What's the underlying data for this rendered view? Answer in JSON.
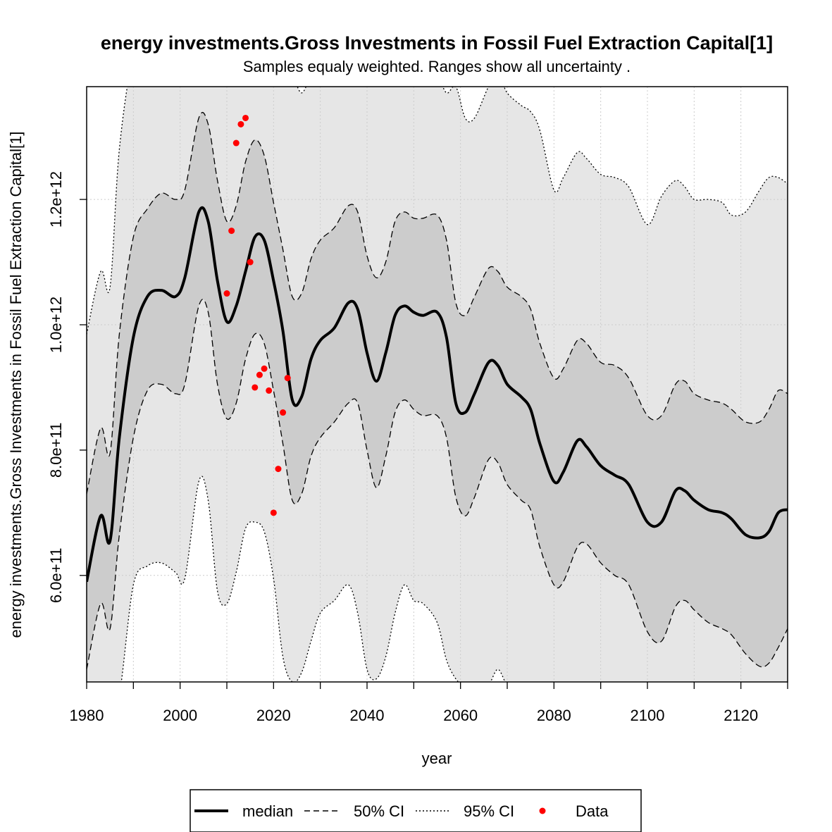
{
  "chart_data": {
    "type": "line",
    "title": "energy investments.Gross Investments in Fossil Fuel Extraction Capital[1]",
    "subtitle": "Samples equaly weighted. Ranges show  all uncertainty .",
    "xlabel": "year",
    "ylabel": "energy investments.Gross Investments in Fossil Fuel Extraction Capital[1]",
    "xlim": [
      1980,
      2130
    ],
    "ylim": [
      430000000000,
      1380000000000
    ],
    "x_ticks": [
      1980,
      2000,
      2020,
      2040,
      2060,
      2080,
      2100,
      2120
    ],
    "x_tick_labels": [
      "1980",
      "2000",
      "2020",
      "2040",
      "2060",
      "2080",
      "2100",
      "2120"
    ],
    "y_ticks": [
      600000000000,
      800000000000,
      1000000000000,
      1200000000000
    ],
    "y_tick_labels": [
      "6.0e+11",
      "8.0e+11",
      "1.0e+12",
      "1.2e+12"
    ],
    "grid": true,
    "legend_position": "bottom",
    "legend": [
      "median",
      "50% CI",
      "95% CI",
      "Data"
    ],
    "colors": {
      "band95": "#e6e6e6",
      "band50": "#cccccc",
      "median": "#000000",
      "data": "#ff0000",
      "grid": "#cccccc"
    },
    "x": [
      1980,
      1983,
      1985,
      1987,
      1990,
      1993,
      1996,
      1999,
      2001,
      2004,
      2006,
      2008,
      2010,
      2012,
      2014,
      2016,
      2018,
      2020,
      2022,
      2024,
      2026,
      2028,
      2030,
      2033,
      2036,
      2038,
      2040,
      2042,
      2044,
      2046,
      2048,
      2050,
      2052,
      2055,
      2057,
      2059,
      2061,
      2063,
      2066,
      2068,
      2070,
      2073,
      2075,
      2077,
      2080,
      2082,
      2085,
      2087,
      2090,
      2093,
      2096,
      2100,
      2103,
      2106,
      2108,
      2110,
      2113,
      2116,
      2118,
      2121,
      2124,
      2126,
      2128,
      2130
    ],
    "series": [
      {
        "name": "median",
        "values": [
          590000000000.0,
          695000000000.0,
          655000000000.0,
          820000000000.0,
          980000000000.0,
          1045000000000.0,
          1055000000000.0,
          1045000000000.0,
          1075000000000.0,
          1180000000000.0,
          1165000000000.0,
          1070000000000.0,
          1005000000000.0,
          1030000000000.0,
          1085000000000.0,
          1140000000000.0,
          1135000000000.0,
          1070000000000.0,
          990000000000.0,
          880000000000.0,
          885000000000.0,
          945000000000.0,
          975000000000.0,
          995000000000.0,
          1035000000000.0,
          1025000000000.0,
          955000000000.0,
          910000000000.0,
          955000000000.0,
          1015000000000.0,
          1030000000000.0,
          1020000000000.0,
          1015000000000.0,
          1020000000000.0,
          980000000000.0,
          875000000000.0,
          860000000000.0,
          890000000000.0,
          940000000000.0,
          935000000000.0,
          905000000000.0,
          885000000000.0,
          865000000000.0,
          810000000000.0,
          750000000000.0,
          765000000000.0,
          815000000000.0,
          805000000000.0,
          775000000000.0,
          760000000000.0,
          745000000000.0,
          685000000000.0,
          685000000000.0,
          735000000000.0,
          735000000000.0,
          720000000000.0,
          705000000000.0,
          700000000000.0,
          690000000000.0,
          665000000000.0,
          660000000000.0,
          670000000000.0,
          700000000000.0,
          705000000000.0
        ]
      },
      {
        "name": "50% CI upper",
        "values": [
          730000000000.0,
          835000000000.0,
          795000000000.0,
          985000000000.0,
          1140000000000.0,
          1185000000000.0,
          1210000000000.0,
          1200000000000.0,
          1215000000000.0,
          1330000000000.0,
          1320000000000.0,
          1230000000000.0,
          1165000000000.0,
          1190000000000.0,
          1260000000000.0,
          1295000000000.0,
          1270000000000.0,
          1195000000000.0,
          1120000000000.0,
          1045000000000.0,
          1050000000000.0,
          1105000000000.0,
          1135000000000.0,
          1155000000000.0,
          1190000000000.0,
          1180000000000.0,
          1110000000000.0,
          1075000000000.0,
          1100000000000.0,
          1165000000000.0,
          1180000000000.0,
          1170000000000.0,
          1170000000000.0,
          1175000000000.0,
          1135000000000.0,
          1035000000000.0,
          1015000000000.0,
          1045000000000.0,
          1090000000000.0,
          1085000000000.0,
          1060000000000.0,
          1045000000000.0,
          1025000000000.0,
          970000000000.0,
          915000000000.0,
          930000000000.0,
          975000000000.0,
          970000000000.0,
          940000000000.0,
          935000000000.0,
          915000000000.0,
          855000000000.0,
          855000000000.0,
          905000000000.0,
          910000000000.0,
          890000000000.0,
          880000000000.0,
          875000000000.0,
          865000000000.0,
          845000000000.0,
          845000000000.0,
          865000000000.0,
          895000000000.0,
          890000000000.0
        ]
      },
      {
        "name": "50% CI lower",
        "values": [
          450000000000.0,
          555000000000.0,
          515000000000.0,
          665000000000.0,
          820000000000.0,
          895000000000.0,
          905000000000.0,
          890000000000.0,
          905000000000.0,
          1030000000000.0,
          1020000000000.0,
          905000000000.0,
          850000000000.0,
          875000000000.0,
          945000000000.0,
          985000000000.0,
          970000000000.0,
          895000000000.0,
          810000000000.0,
          720000000000.0,
          730000000000.0,
          790000000000.0,
          820000000000.0,
          845000000000.0,
          875000000000.0,
          875000000000.0,
          800000000000.0,
          740000000000.0,
          790000000000.0,
          860000000000.0,
          880000000000.0,
          865000000000.0,
          855000000000.0,
          855000000000.0,
          820000000000.0,
          725000000000.0,
          695000000000.0,
          725000000000.0,
          785000000000.0,
          780000000000.0,
          745000000000.0,
          720000000000.0,
          705000000000.0,
          645000000000.0,
          585000000000.0,
          590000000000.0,
          645000000000.0,
          650000000000.0,
          620000000000.0,
          600000000000.0,
          585000000000.0,
          510000000000.0,
          495000000000.0,
          550000000000.0,
          560000000000.0,
          545000000000.0,
          525000000000.0,
          515000000000.0,
          505000000000.0,
          475000000000.0,
          455000000000.0,
          460000000000.0,
          485000000000.0,
          515000000000.0
        ]
      },
      {
        "name": "95% CI upper",
        "values": [
          985000000000.0,
          1085000000000.0,
          1060000000000.0,
          1280000000000.0,
          1430000000000.0,
          1450000000000.0,
          1440000000000.0,
          1430000000000.0,
          1430000000000.0,
          1440000000000.0,
          1440000000000.0,
          1430000000000.0,
          1430000000000.0,
          1440000000000.0,
          1450000000000.0,
          1440000000000.0,
          1440000000000.0,
          1430000000000.0,
          1420000000000.0,
          1400000000000.0,
          1370000000000.0,
          1400000000000.0,
          1430000000000.0,
          1440000000000.0,
          1450000000000.0,
          1440000000000.0,
          1430000000000.0,
          1440000000000.0,
          1440000000000.0,
          1450000000000.0,
          1440000000000.0,
          1430000000000.0,
          1420000000000.0,
          1400000000000.0,
          1370000000000.0,
          1380000000000.0,
          1330000000000.0,
          1330000000000.0,
          1380000000000.0,
          1400000000000.0,
          1370000000000.0,
          1350000000000.0,
          1340000000000.0,
          1310000000000.0,
          1215000000000.0,
          1235000000000.0,
          1275000000000.0,
          1265000000000.0,
          1240000000000.0,
          1235000000000.0,
          1220000000000.0,
          1160000000000.0,
          1205000000000.0,
          1230000000000.0,
          1220000000000.0,
          1200000000000.0,
          1200000000000.0,
          1195000000000.0,
          1175000000000.0,
          1180000000000.0,
          1215000000000.0,
          1235000000000.0,
          1235000000000.0,
          1225000000000.0
        ]
      },
      {
        "name": "95% CI lower",
        "values": [
          400000000000.0,
          400000000000.0,
          400000000000.0,
          410000000000.0,
          585000000000.0,
          615000000000.0,
          620000000000.0,
          605000000000.0,
          595000000000.0,
          750000000000.0,
          720000000000.0,
          575000000000.0,
          555000000000.0,
          605000000000.0,
          675000000000.0,
          685000000000.0,
          670000000000.0,
          595000000000.0,
          470000000000.0,
          430000000000.0,
          445000000000.0,
          495000000000.0,
          540000000000.0,
          560000000000.0,
          585000000000.0,
          540000000000.0,
          450000000000.0,
          435000000000.0,
          470000000000.0,
          540000000000.0,
          585000000000.0,
          560000000000.0,
          555000000000.0,
          525000000000.0,
          465000000000.0,
          435000000000.0,
          420000000000.0,
          405000000000.0,
          425000000000.0,
          450000000000.0,
          425000000000.0,
          410000000000.0,
          400000000000.0,
          400000000000.0,
          400000000000.0,
          400000000000.0,
          400000000000.0,
          400000000000.0,
          400000000000.0,
          400000000000.0,
          400000000000.0,
          400000000000.0,
          400000000000.0,
          400000000000.0,
          400000000000.0,
          400000000000.0,
          400000000000.0,
          400000000000.0,
          400000000000.0,
          400000000000.0,
          400000000000.0,
          400000000000.0,
          400000000000.0,
          400000000000.0
        ]
      }
    ],
    "data_points": {
      "name": "Data",
      "x": [
        2010,
        2011,
        2012,
        2013,
        2014,
        2015,
        2016,
        2017,
        2018,
        2019,
        2020,
        2021,
        2022,
        2023
      ],
      "y": [
        1050000000000.0,
        1150000000000.0,
        1290000000000.0,
        1320000000000.0,
        1330000000000.0,
        1100000000000.0,
        900000000000.0,
        920000000000.0,
        930000000000.0,
        895000000000.0,
        700000000000.0,
        770000000000.0,
        860000000000.0,
        915000000000.0
      ]
    }
  }
}
